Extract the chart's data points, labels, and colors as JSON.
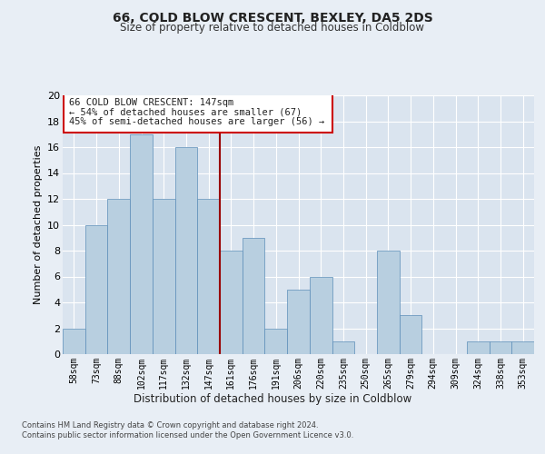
{
  "title1": "66, COLD BLOW CRESCENT, BEXLEY, DA5 2DS",
  "title2": "Size of property relative to detached houses in Coldblow",
  "xlabel": "Distribution of detached houses by size in Coldblow",
  "ylabel": "Number of detached properties",
  "categories": [
    "58sqm",
    "73sqm",
    "88sqm",
    "102sqm",
    "117sqm",
    "132sqm",
    "147sqm",
    "161sqm",
    "176sqm",
    "191sqm",
    "206sqm",
    "220sqm",
    "235sqm",
    "250sqm",
    "265sqm",
    "279sqm",
    "294sqm",
    "309sqm",
    "324sqm",
    "338sqm",
    "353sqm"
  ],
  "values": [
    2,
    10,
    12,
    17,
    12,
    16,
    12,
    8,
    9,
    2,
    5,
    6,
    1,
    0,
    8,
    3,
    0,
    0,
    1,
    1,
    1
  ],
  "bar_color": "#b8cfe0",
  "bar_edge_color": "#5b8db8",
  "background_color": "#e8eef5",
  "plot_bg_color": "#dae4ef",
  "vline_color": "#990000",
  "annotation_line1": "66 COLD BLOW CRESCENT: 147sqm",
  "annotation_line2": "← 54% of detached houses are smaller (67)",
  "annotation_line3": "45% of semi-detached houses are larger (56) →",
  "annotation_box_color": "#ffffff",
  "annotation_border_color": "#cc0000",
  "ylim": [
    0,
    20
  ],
  "yticks": [
    0,
    2,
    4,
    6,
    8,
    10,
    12,
    14,
    16,
    18,
    20
  ],
  "footer1": "Contains HM Land Registry data © Crown copyright and database right 2024.",
  "footer2": "Contains public sector information licensed under the Open Government Licence v3.0."
}
